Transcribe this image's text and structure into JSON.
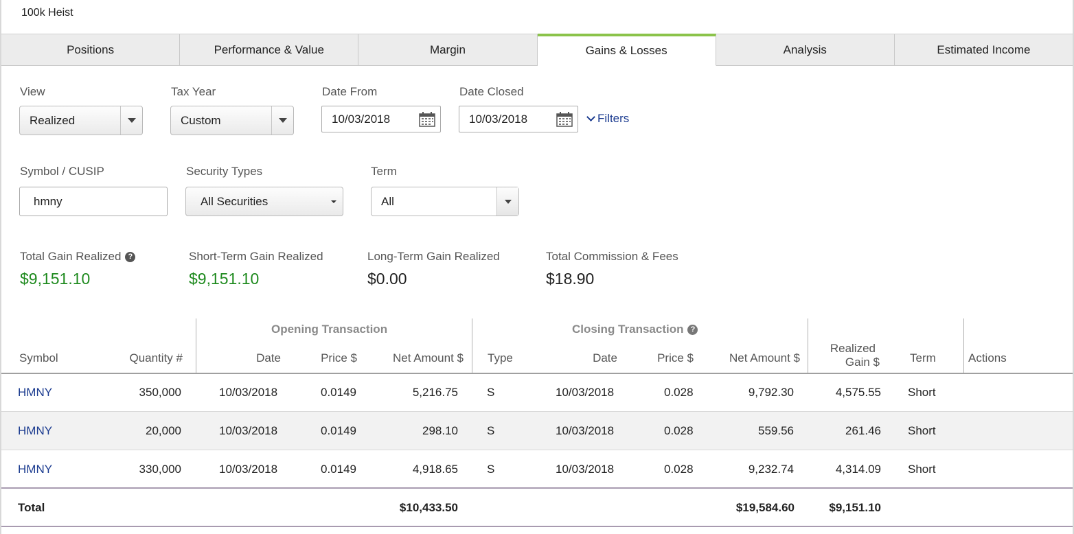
{
  "account": {
    "title": "100k Heist"
  },
  "tabs": [
    {
      "label": "Positions",
      "active": false
    },
    {
      "label": "Performance & Value",
      "active": false
    },
    {
      "label": "Margin",
      "active": false
    },
    {
      "label": "Gains & Losses",
      "active": true
    },
    {
      "label": "Analysis",
      "active": false
    },
    {
      "label": "Estimated Income",
      "active": false
    }
  ],
  "filters": {
    "view": {
      "label": "View",
      "value": "Realized"
    },
    "tax_year": {
      "label": "Tax Year",
      "value": "Custom"
    },
    "date_from": {
      "label": "Date From",
      "value": "10/03/2018"
    },
    "date_closed": {
      "label": "Date Closed",
      "value": "10/03/2018"
    },
    "filters_link": "Filters",
    "symbol": {
      "label": "Symbol / CUSIP",
      "value": "hmny"
    },
    "security_types": {
      "label": "Security Types",
      "value": "All Securities"
    },
    "term": {
      "label": "Term",
      "value": "All"
    }
  },
  "summary": {
    "total_gain": {
      "label": "Total Gain Realized",
      "value": "$9,151.10"
    },
    "short_term": {
      "label": "Short-Term Gain Realized",
      "value": "$9,151.10"
    },
    "long_term": {
      "label": "Long-Term Gain Realized",
      "value": "$0.00"
    },
    "commission": {
      "label": "Total Commission & Fees",
      "value": "$18.90"
    }
  },
  "table": {
    "group_opening": "Opening Transaction",
    "group_closing": "Closing Transaction",
    "headers": {
      "symbol": "Symbol",
      "quantity": "Quantity #",
      "open_date": "Date",
      "open_price": "Price $",
      "open_net": "Net Amount $",
      "type": "Type",
      "close_date": "Date",
      "close_price": "Price $",
      "close_net": "Net Amount $",
      "realized_line1": "Realized",
      "realized_line2": "Gain $",
      "term": "Term",
      "actions": "Actions"
    },
    "rows": [
      {
        "symbol": "HMNY",
        "quantity": "350,000",
        "open_date": "10/03/2018",
        "open_price": "0.0149",
        "open_net": "5,216.75",
        "type": "S",
        "close_date": "10/03/2018",
        "close_price": "0.028",
        "close_net": "9,792.30",
        "gain": "4,575.55",
        "term": "Short"
      },
      {
        "symbol": "HMNY",
        "quantity": "20,000",
        "open_date": "10/03/2018",
        "open_price": "0.0149",
        "open_net": "298.10",
        "type": "S",
        "close_date": "10/03/2018",
        "close_price": "0.028",
        "close_net": "559.56",
        "gain": "261.46",
        "term": "Short"
      },
      {
        "symbol": "HMNY",
        "quantity": "330,000",
        "open_date": "10/03/2018",
        "open_price": "0.0149",
        "open_net": "4,918.65",
        "type": "S",
        "close_date": "10/03/2018",
        "close_price": "0.028",
        "close_net": "9,232.74",
        "gain": "4,314.09",
        "term": "Short"
      }
    ],
    "total": {
      "label": "Total",
      "open_net": "$10,433.50",
      "close_net": "$19,584.60",
      "gain": "$9,151.10"
    }
  }
}
